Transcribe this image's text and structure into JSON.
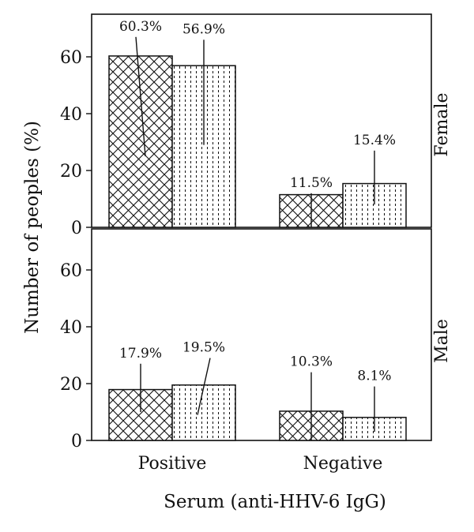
{
  "chart_data": {
    "type": "bar",
    "xlabel": "Serum (anti-HHV-6 IgG)",
    "ylabel": "Number of peoples (%)",
    "categories": [
      "Positive",
      "Negative"
    ],
    "ylim": [
      0,
      70
    ],
    "yticks": [
      0,
      20,
      40,
      60
    ],
    "grid": false,
    "panels": [
      {
        "name": "Female",
        "series": [
          {
            "pattern": "crosshatch",
            "values": [
              60.3,
              11.5
            ],
            "labels": [
              "60.3%",
              "11.5%"
            ],
            "error_low": [
              25,
              0
            ],
            "error_high": [
              67,
              12
            ]
          },
          {
            "pattern": "dotted-vertical",
            "values": [
              56.9,
              15.4
            ],
            "labels": [
              "56.9%",
              "15.4%"
            ],
            "error_low": [
              29,
              8
            ],
            "error_high": [
              66,
              27
            ]
          }
        ]
      },
      {
        "name": "Male",
        "series": [
          {
            "pattern": "crosshatch",
            "values": [
              17.9,
              10.3
            ],
            "labels": [
              "17.9%",
              "10.3%"
            ],
            "error_low": [
              10,
              0
            ],
            "error_high": [
              27,
              24
            ]
          },
          {
            "pattern": "dotted-vertical",
            "values": [
              19.5,
              8.1
            ],
            "labels": [
              "19.5%",
              "8.1%"
            ],
            "error_low": [
              9,
              3
            ],
            "error_high": [
              29,
              19
            ]
          }
        ]
      }
    ]
  }
}
